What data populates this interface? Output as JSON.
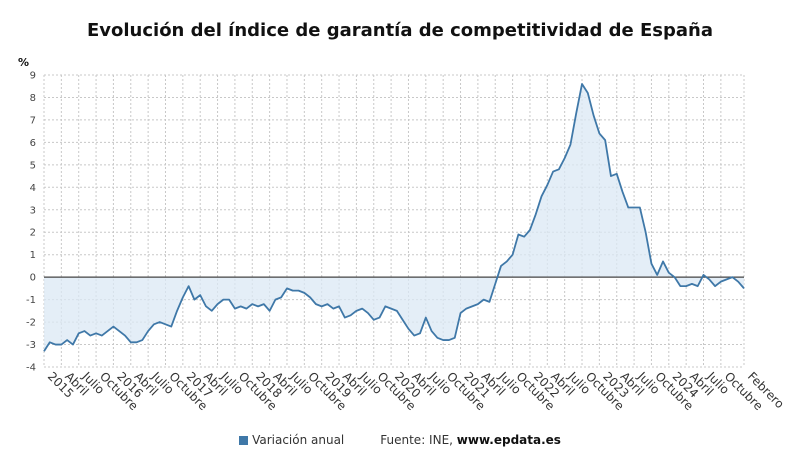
{
  "title": "Evolución del índice de garantía de competitividad de España",
  "legend_label": "Variación anual",
  "source_label": "Fuente: INE,",
  "source_site": "www.epdata.es",
  "colors": {
    "line": "#3f78a8",
    "area": "#dbe8f4",
    "zero_line": "#444444",
    "grid": "#c8c8c8"
  },
  "chart_data": {
    "type": "area",
    "title": "Evolución del índice de garantía de competitividad de España",
    "ylabel": "%",
    "xlabel": "",
    "ylim": [
      -4,
      9
    ],
    "yticks": [
      -4,
      -3,
      -2,
      -1,
      0,
      1,
      2,
      3,
      4,
      5,
      6,
      7,
      8,
      9
    ],
    "grid": true,
    "x_start": "2015-01",
    "x_end": "2025-02",
    "xtick_labels": [
      {
        "month": "2015-01",
        "label": "2015"
      },
      {
        "month": "2015-04",
        "label": "Abril"
      },
      {
        "month": "2015-07",
        "label": "Julio"
      },
      {
        "month": "2015-10",
        "label": "Octubre"
      },
      {
        "month": "2016-01",
        "label": "2016"
      },
      {
        "month": "2016-04",
        "label": "Abril"
      },
      {
        "month": "2016-07",
        "label": "Julio"
      },
      {
        "month": "2016-10",
        "label": "Octubre"
      },
      {
        "month": "2017-01",
        "label": "2017"
      },
      {
        "month": "2017-04",
        "label": "Abril"
      },
      {
        "month": "2017-07",
        "label": "Julio"
      },
      {
        "month": "2017-10",
        "label": "Octubre"
      },
      {
        "month": "2018-01",
        "label": "2018"
      },
      {
        "month": "2018-04",
        "label": "Abril"
      },
      {
        "month": "2018-07",
        "label": "Julio"
      },
      {
        "month": "2018-10",
        "label": "Octubre"
      },
      {
        "month": "2019-01",
        "label": "2019"
      },
      {
        "month": "2019-04",
        "label": "Abril"
      },
      {
        "month": "2019-07",
        "label": "Julio"
      },
      {
        "month": "2019-10",
        "label": "Octubre"
      },
      {
        "month": "2020-01",
        "label": "2020"
      },
      {
        "month": "2020-04",
        "label": "Abril"
      },
      {
        "month": "2020-07",
        "label": "Julio"
      },
      {
        "month": "2020-10",
        "label": "Octubre"
      },
      {
        "month": "2021-01",
        "label": "2021"
      },
      {
        "month": "2021-04",
        "label": "Abril"
      },
      {
        "month": "2021-07",
        "label": "Julio"
      },
      {
        "month": "2021-10",
        "label": "Octubre"
      },
      {
        "month": "2022-01",
        "label": "2022"
      },
      {
        "month": "2022-04",
        "label": "Abril"
      },
      {
        "month": "2022-07",
        "label": "Julio"
      },
      {
        "month": "2022-10",
        "label": "Octubre"
      },
      {
        "month": "2023-01",
        "label": "2023"
      },
      {
        "month": "2023-04",
        "label": "Abril"
      },
      {
        "month": "2023-07",
        "label": "Julio"
      },
      {
        "month": "2023-10",
        "label": "Octubre"
      },
      {
        "month": "2024-01",
        "label": "2024"
      },
      {
        "month": "2024-04",
        "label": "Abril"
      },
      {
        "month": "2024-07",
        "label": "Julio"
      },
      {
        "month": "2024-10",
        "label": "Octubre"
      },
      {
        "month": "2025-02",
        "label": "Febrero"
      }
    ],
    "series": [
      {
        "name": "Variación anual",
        "values": [
          -3.3,
          -2.9,
          -3.0,
          -3.0,
          -2.8,
          -3.0,
          -2.5,
          -2.4,
          -2.6,
          -2.5,
          -2.6,
          -2.4,
          -2.2,
          -2.4,
          -2.6,
          -2.9,
          -2.9,
          -2.8,
          -2.4,
          -2.1,
          -2.0,
          -2.1,
          -2.2,
          -1.5,
          -0.9,
          -0.4,
          -1.0,
          -0.8,
          -1.3,
          -1.5,
          -1.2,
          -1.0,
          -1.0,
          -1.4,
          -1.3,
          -1.4,
          -1.2,
          -1.3,
          -1.2,
          -1.5,
          -1.0,
          -0.9,
          -0.5,
          -0.6,
          -0.6,
          -0.7,
          -0.9,
          -1.2,
          -1.3,
          -1.2,
          -1.4,
          -1.3,
          -1.8,
          -1.7,
          -1.5,
          -1.4,
          -1.6,
          -1.9,
          -1.8,
          -1.3,
          -1.4,
          -1.5,
          -1.9,
          -2.3,
          -2.6,
          -2.5,
          -1.8,
          -2.4,
          -2.7,
          -2.8,
          -2.8,
          -2.7,
          -1.6,
          -1.4,
          -1.3,
          -1.2,
          -1.0,
          -1.1,
          -0.3,
          0.5,
          0.7,
          1.0,
          1.9,
          1.8,
          2.1,
          2.8,
          3.6,
          4.1,
          4.7,
          4.8,
          5.3,
          5.9,
          7.3,
          8.6,
          8.2,
          7.2,
          6.4,
          6.1,
          4.5,
          4.6,
          3.8,
          3.1,
          3.1,
          3.1,
          2.0,
          0.6,
          0.1,
          0.7,
          0.2,
          0.0,
          -0.4,
          -0.4,
          -0.3,
          -0.4,
          0.1,
          -0.1,
          -0.4,
          -0.2,
          -0.1,
          0.0,
          -0.2,
          -0.5
        ]
      }
    ]
  }
}
